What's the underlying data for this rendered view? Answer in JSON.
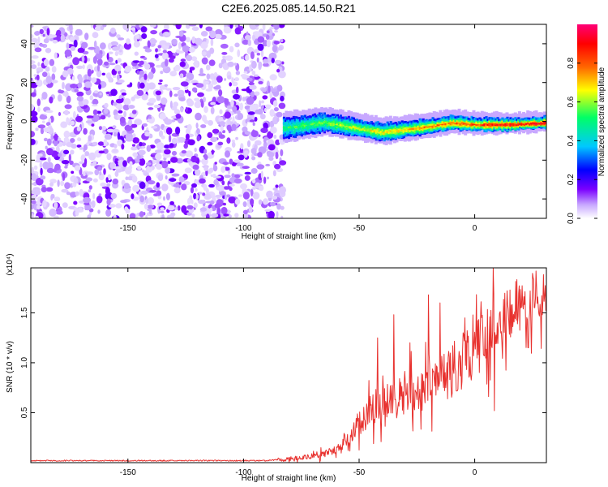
{
  "figure": {
    "title": "C2E6.2025.085.14.50.R21"
  },
  "chart_data": [
    {
      "type": "heatmap",
      "name": "spectrogram",
      "xlabel": "Height of straight line (km)",
      "ylabel": "Frequency (Hz)",
      "xlim": [
        -192,
        31
      ],
      "ylim": [
        -50,
        50
      ],
      "xticks": [
        -150,
        -100,
        -50,
        0
      ],
      "yticks": [
        -40,
        -20,
        0,
        20,
        40
      ],
      "colorbar": {
        "label": "Normalized spectral amplitude",
        "range": [
          0,
          1
        ],
        "ticks": [
          "0.0",
          "0.2",
          "0.4",
          "0.6",
          "0.8"
        ],
        "colormap": [
          "#ffffff",
          "#c8a8ff",
          "#7a00ff",
          "#0000ff",
          "#00c8ff",
          "#00ff66",
          "#ffff00",
          "#ff6600",
          "#ff0000",
          "#ff0077"
        ]
      },
      "regions": [
        {
          "description": "noise",
          "x": [
            -192,
            -83
          ],
          "freq": [
            -50,
            50
          ],
          "amplitude": [
            0.05,
            0.2
          ]
        },
        {
          "description": "signal band",
          "x": [
            -83,
            31
          ],
          "center_freq": [
            [
              -83,
              -3
            ],
            [
              -65,
              0
            ],
            [
              -50,
              -3
            ],
            [
              -40,
              -5
            ],
            [
              -20,
              -2
            ],
            [
              -10,
              0
            ],
            [
              0,
              -1
            ],
            [
              15,
              -1
            ],
            [
              31,
              0
            ]
          ],
          "amplitude": [
            0.3,
            0.9
          ]
        }
      ]
    },
    {
      "type": "line",
      "name": "snr",
      "xlabel": "Height of straight line (km)",
      "ylabel": "SNR (10 * v/v)",
      "scale_label": "(x10⁴)",
      "xlim": [
        -192,
        31
      ],
      "ylim": [
        0,
        1.95
      ],
      "xticks": [
        -150,
        -100,
        -50,
        0
      ],
      "yticks": [
        "0.5",
        "1.0",
        "1.5"
      ],
      "color": "#e8322f",
      "trend": [
        [
          -192,
          0.02
        ],
        [
          -90,
          0.02
        ],
        [
          -80,
          0.04
        ],
        [
          -70,
          0.07
        ],
        [
          -60,
          0.12
        ],
        [
          -55,
          0.25
        ],
        [
          -50,
          0.4
        ],
        [
          -45,
          0.55
        ],
        [
          -40,
          0.62
        ],
        [
          -35,
          0.65
        ],
        [
          -30,
          0.7
        ],
        [
          -25,
          0.75
        ],
        [
          -20,
          0.78
        ],
        [
          -15,
          0.85
        ],
        [
          -10,
          0.95
        ],
        [
          -5,
          1.05
        ],
        [
          0,
          1.15
        ],
        [
          5,
          1.28
        ],
        [
          10,
          1.4
        ],
        [
          15,
          1.52
        ],
        [
          20,
          1.62
        ],
        [
          25,
          1.72
        ],
        [
          31,
          1.78
        ]
      ],
      "spikes": [
        [
          -42,
          1.25
        ],
        [
          -35,
          1.48
        ],
        [
          -28,
          1.2
        ],
        [
          -20,
          1.68
        ],
        [
          -15,
          1.6
        ],
        [
          -5,
          1.3
        ],
        [
          8,
          1.95
        ],
        [
          8.5,
          0.52
        ],
        [
          14,
          1.72
        ],
        [
          20,
          1.55
        ]
      ]
    }
  ]
}
